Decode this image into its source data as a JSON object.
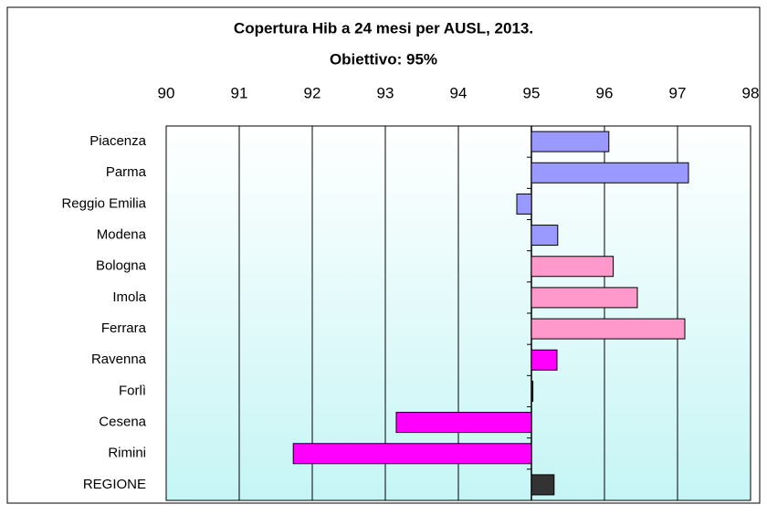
{
  "chart_data": {
    "type": "bar",
    "orientation": "horizontal",
    "title": "Copertura Hib a 24 mesi per AUSL, 2013.",
    "subtitle": "Obiettivo: 95%",
    "categories": [
      "Piacenza",
      "Parma",
      "Reggio Emilia",
      "Modena",
      "Bologna",
      "Imola",
      "Ferrara",
      "Ravenna",
      "Forlì",
      "Cesena",
      "Rimini",
      "REGIONE"
    ],
    "values": [
      96.06,
      97.15,
      94.8,
      95.36,
      96.12,
      96.45,
      97.1,
      95.35,
      95.02,
      93.15,
      91.74,
      95.31
    ],
    "colors": [
      "#9999ff",
      "#9999ff",
      "#9999ff",
      "#9999ff",
      "#ff99cc",
      "#ff99cc",
      "#ff99cc",
      "#ff00ff",
      "#333333",
      "#ff00ff",
      "#ff00ff",
      "#333333"
    ],
    "origin": 95,
    "xlim": [
      90,
      98
    ],
    "xticks": [
      90,
      91,
      92,
      93,
      94,
      95,
      96,
      97,
      98
    ],
    "grid": true
  }
}
